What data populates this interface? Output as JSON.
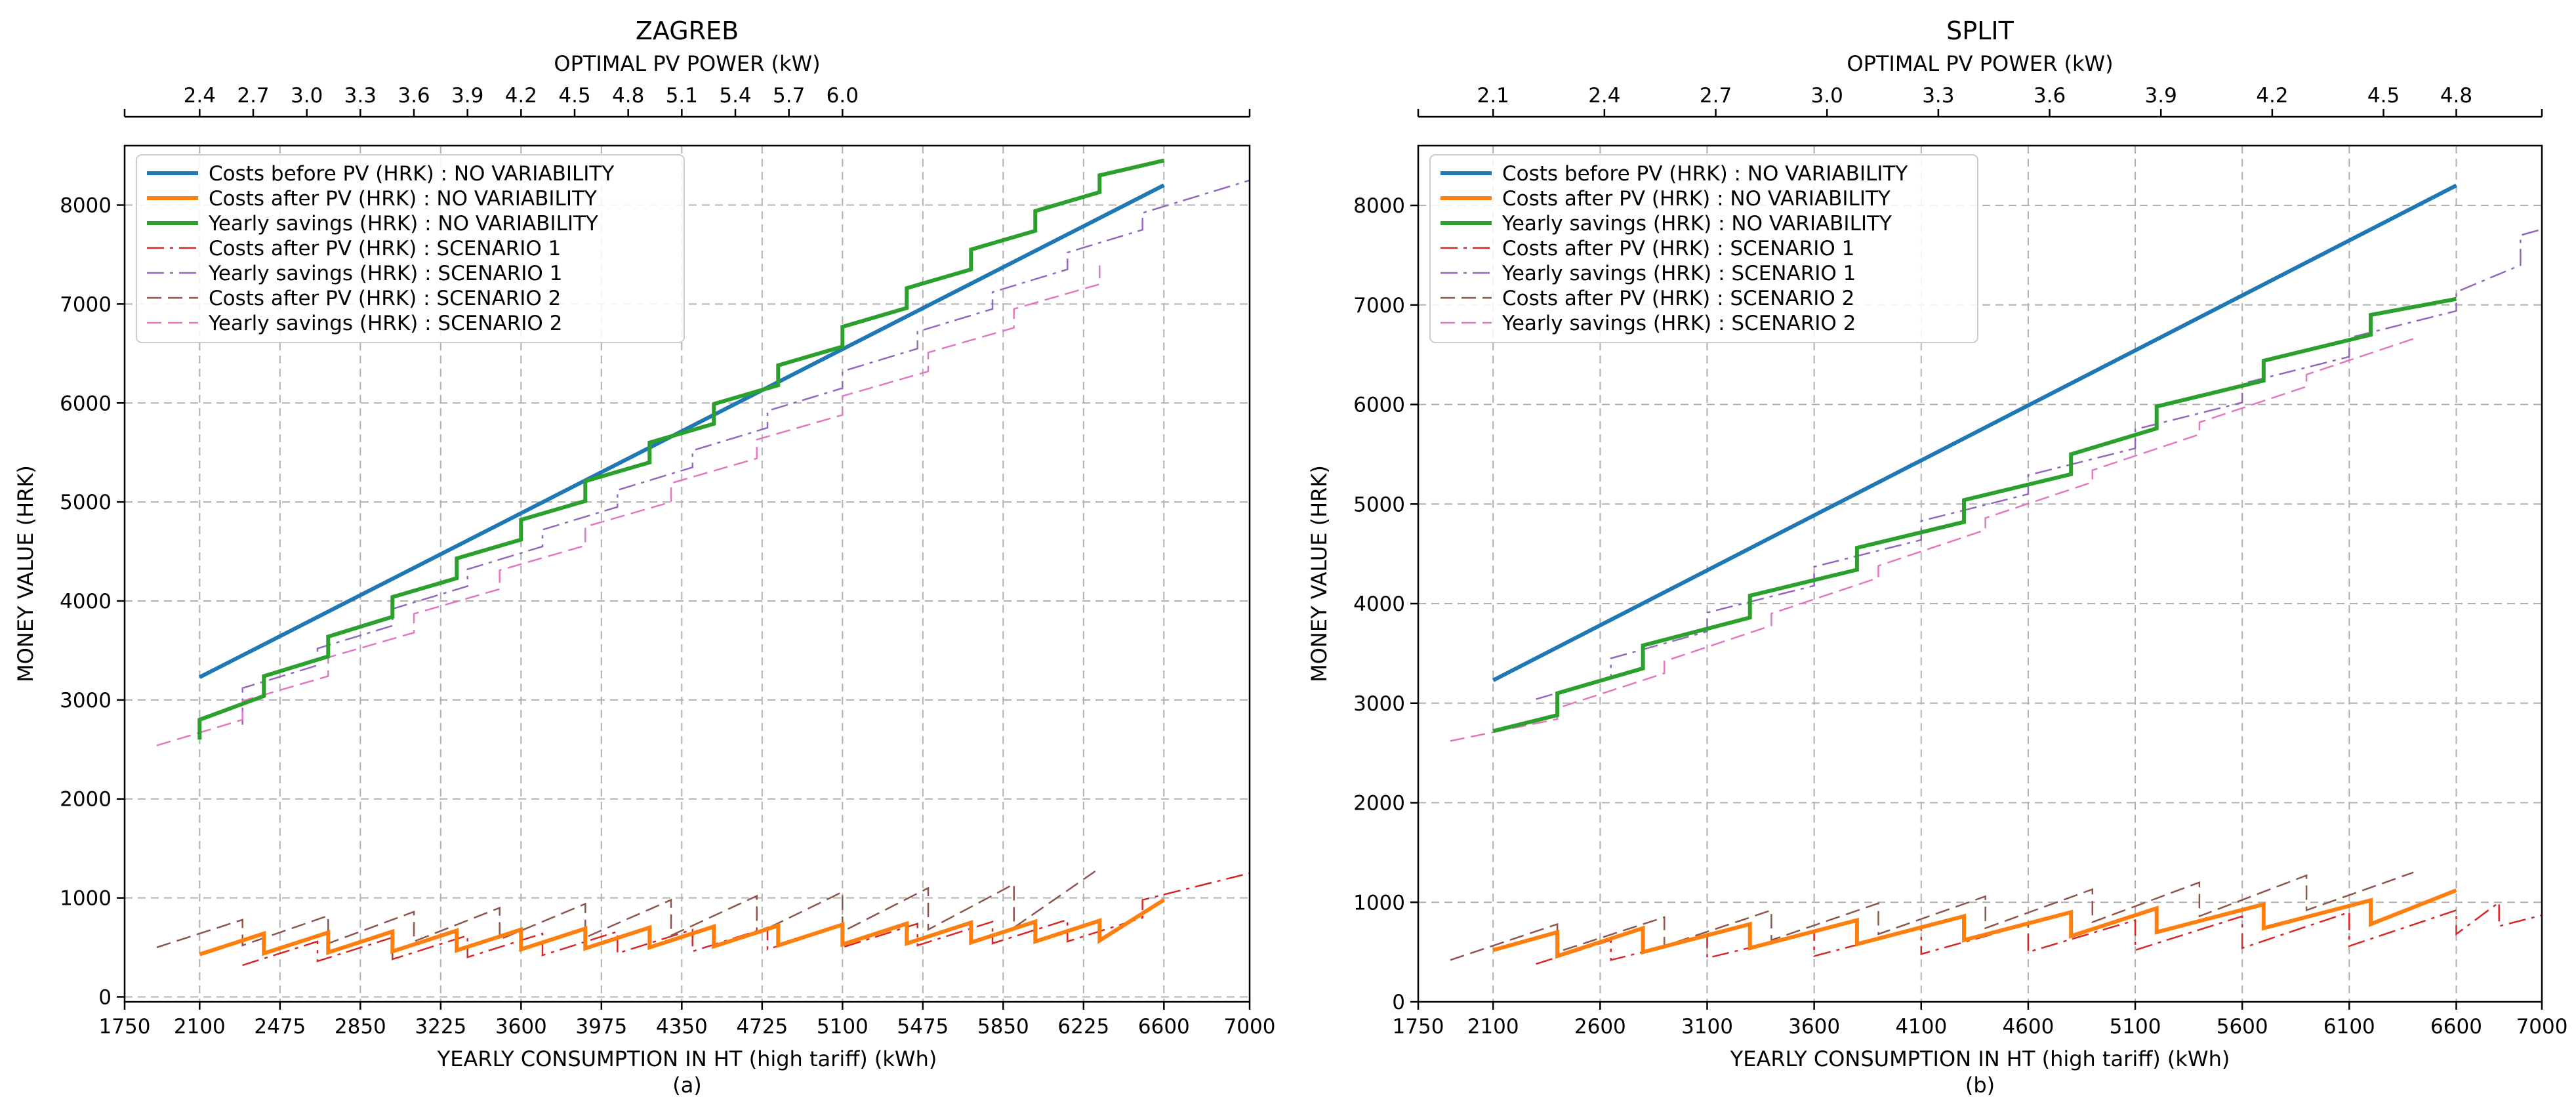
{
  "colors": {
    "costs_before_nv": "#1f77b4",
    "costs_after_nv": "#ff7f0e",
    "savings_nv": "#2ca02c",
    "costs_after_s1": "#d62728",
    "savings_s1": "#9467bd",
    "costs_after_s2": "#8c564b",
    "savings_s2": "#e377c2",
    "grid": "#b0b0b0"
  },
  "chart_data": [
    {
      "type": "line",
      "title": "ZAGREB",
      "top_xlabel": "OPTIMAL PV POWER (kW)",
      "top_ticks": [
        "2.4",
        "2.7",
        "3.0",
        "3.3",
        "3.6",
        "3.9",
        "4.2",
        "4.5",
        "4.8",
        "5.1",
        "5.4",
        "5.7",
        "6.0"
      ],
      "top_tick_positions": [
        2100,
        2350,
        2600,
        2850,
        3100,
        3350,
        3600,
        3850,
        4100,
        4350,
        4600,
        4850,
        5100
      ],
      "xlabel": "YEARLY CONSUMPTION IN HT (high tariff) (kWh)",
      "ylabel": "MONEY VALUE (HRK)",
      "panel_label": "(a)",
      "xlim": [
        1750,
        7000
      ],
      "ylim": [
        -50,
        8600
      ],
      "xticks": [
        1750,
        2100,
        2475,
        2850,
        3225,
        3600,
        3975,
        4350,
        4725,
        5100,
        5475,
        5850,
        6225,
        6600,
        7000
      ],
      "yticks": [
        0,
        1000,
        2000,
        3000,
        4000,
        5000,
        6000,
        7000,
        8000
      ],
      "legend_position": "upper-left",
      "series": [
        {
          "name": "Costs before PV (HRK) : NO VARIABILITY",
          "key": "costs_before_nv",
          "style": "solid",
          "width": 6,
          "x": [
            2100,
            6600
          ],
          "y": [
            3230,
            8200
          ]
        },
        {
          "name": "Costs after PV (HRK) : NO VARIABILITY",
          "key": "costs_after_nv",
          "style": "solid",
          "width": 6,
          "x": [
            2100,
            2400,
            2400,
            2700,
            2700,
            3000,
            3000,
            3300,
            3300,
            3600,
            3600,
            3900,
            3900,
            4200,
            4200,
            4500,
            4500,
            4800,
            4800,
            5100,
            5100,
            5400,
            5400,
            5700,
            5700,
            6000,
            6000,
            6300,
            6300,
            6600
          ],
          "y": [
            430,
            640,
            440,
            650,
            450,
            660,
            460,
            670,
            470,
            680,
            480,
            690,
            490,
            700,
            500,
            710,
            510,
            720,
            520,
            730,
            530,
            740,
            540,
            750,
            550,
            760,
            560,
            770,
            570,
            980
          ]
        },
        {
          "name": "Yearly savings (HRK) : NO VARIABILITY",
          "key": "savings_nv",
          "style": "solid",
          "width": 6,
          "x": [
            2100,
            2100,
            2400,
            2400,
            2700,
            2700,
            3000,
            3000,
            3300,
            3300,
            3600,
            3600,
            3900,
            3900,
            4200,
            4200,
            4500,
            4500,
            4800,
            4800,
            5100,
            5100,
            5400,
            5400,
            5700,
            5700,
            6000,
            6000,
            6300,
            6300,
            6600
          ],
          "y": [
            2600,
            2800,
            3040,
            3240,
            3440,
            3640,
            3840,
            4040,
            4230,
            4430,
            4620,
            4820,
            5010,
            5210,
            5400,
            5600,
            5790,
            5990,
            6180,
            6380,
            6570,
            6770,
            6960,
            7160,
            7350,
            7550,
            7740,
            7940,
            8130,
            8300,
            8450
          ]
        },
        {
          "name": "Costs after PV (HRK) : SCENARIO 1",
          "key": "costs_after_s1",
          "style": "dashdot",
          "width": 2.5,
          "x": [
            2300,
            2650,
            2650,
            3000,
            3000,
            3350,
            3350,
            3700,
            3700,
            4050,
            4050,
            4400,
            4400,
            4750,
            4750,
            5100,
            5100,
            5450,
            5450,
            5800,
            5800,
            6150,
            6150,
            6500,
            6500,
            7000
          ],
          "y": [
            320,
            560,
            360,
            600,
            380,
            620,
            400,
            640,
            420,
            660,
            440,
            680,
            460,
            700,
            480,
            720,
            500,
            740,
            520,
            760,
            540,
            780,
            560,
            800,
            980,
            1250
          ]
        },
        {
          "name": "Yearly savings (HRK) : SCENARIO 1",
          "key": "savings_s1",
          "style": "dashdot",
          "width": 2.5,
          "x": [
            2300,
            2300,
            2650,
            2650,
            3000,
            3000,
            3350,
            3350,
            3700,
            3700,
            4050,
            4050,
            4400,
            4400,
            4750,
            4750,
            5100,
            5100,
            5450,
            5450,
            5800,
            5800,
            6150,
            6150,
            6500,
            6500,
            7000
          ],
          "y": [
            2750,
            3120,
            3350,
            3520,
            3750,
            3920,
            4150,
            4320,
            4550,
            4720,
            4950,
            5120,
            5350,
            5520,
            5750,
            5920,
            6150,
            6320,
            6550,
            6720,
            6950,
            7120,
            7350,
            7520,
            7750,
            7920,
            8250
          ]
        },
        {
          "name": "Costs after PV (HRK) : SCENARIO 2",
          "key": "costs_after_s2",
          "style": "dashed",
          "width": 2.5,
          "x": [
            1900,
            2300,
            2300,
            2700,
            2700,
            3100,
            3100,
            3500,
            3500,
            3900,
            3900,
            4300,
            4300,
            4700,
            4700,
            5100,
            5100,
            5500,
            5500,
            5900,
            5900,
            6300
          ],
          "y": [
            500,
            780,
            520,
            820,
            540,
            860,
            560,
            900,
            580,
            940,
            600,
            980,
            620,
            1020,
            640,
            1060,
            660,
            1100,
            680,
            1140,
            700,
            1300
          ]
        },
        {
          "name": "Yearly savings (HRK) : SCENARIO 2",
          "key": "savings_s2",
          "style": "dashed",
          "width": 2.5,
          "x": [
            1900,
            2300,
            2300,
            2700,
            2700,
            3100,
            3100,
            3500,
            3500,
            3900,
            3900,
            4300,
            4300,
            4700,
            4700,
            5100,
            5100,
            5500,
            5500,
            5900,
            5900,
            6300,
            6300
          ],
          "y": [
            2540,
            2800,
            2990,
            3240,
            3430,
            3680,
            3870,
            4120,
            4310,
            4560,
            4750,
            5000,
            5190,
            5440,
            5630,
            5880,
            6070,
            6320,
            6510,
            6760,
            6950,
            7200,
            7390
          ]
        }
      ]
    },
    {
      "type": "line",
      "title": "SPLIT",
      "top_xlabel": "OPTIMAL PV POWER (kW)",
      "top_ticks": [
        "2.1",
        "2.4",
        "2.7",
        "3.0",
        "3.3",
        "3.6",
        "3.9",
        "4.2",
        "4.5",
        "4.8"
      ],
      "top_tick_positions": [
        2100,
        2620,
        3140,
        3660,
        4180,
        4700,
        5220,
        5740,
        6260,
        6600
      ],
      "xlabel": "YEARLY CONSUMPTION IN HT (high tariff) (kWh)",
      "ylabel": "MONEY VALUE (HRK)",
      "panel_label": "(b)",
      "xlim": [
        1750,
        7000
      ],
      "ylim": [
        0,
        8600
      ],
      "xticks": [
        1750,
        2100,
        2600,
        3100,
        3600,
        4100,
        4600,
        5100,
        5600,
        6100,
        6600,
        7000
      ],
      "yticks": [
        0,
        1000,
        2000,
        3000,
        4000,
        5000,
        6000,
        7000,
        8000
      ],
      "legend_position": "upper-left",
      "series": [
        {
          "name": "Costs before PV (HRK) : NO VARIABILITY",
          "key": "costs_before_nv",
          "style": "solid",
          "width": 6,
          "x": [
            2100,
            6600
          ],
          "y": [
            3230,
            8200
          ]
        },
        {
          "name": "Costs after PV (HRK) : NO VARIABILITY",
          "key": "costs_after_nv",
          "style": "solid",
          "width": 6,
          "x": [
            2100,
            2400,
            2400,
            2800,
            2800,
            3300,
            3300,
            3800,
            3800,
            4300,
            4300,
            4800,
            4800,
            5200,
            5200,
            5700,
            5700,
            6200,
            6200,
            6600
          ],
          "y": [
            520,
            700,
            460,
            740,
            500,
            780,
            540,
            820,
            580,
            860,
            620,
            900,
            660,
            940,
            700,
            980,
            740,
            1020,
            780,
            1120
          ]
        },
        {
          "name": "Yearly savings (HRK) : NO VARIABILITY",
          "key": "savings_nv",
          "style": "solid",
          "width": 6,
          "x": [
            2100,
            2400,
            2400,
            2800,
            2800,
            3300,
            3300,
            3800,
            3800,
            4300,
            4300,
            4800,
            4800,
            5200,
            5200,
            5700,
            5700,
            6200,
            6200,
            6600
          ],
          "y": [
            2720,
            2880,
            3100,
            3350,
            3580,
            3860,
            4080,
            4340,
            4560,
            4820,
            5040,
            5300,
            5500,
            5760,
            5980,
            6240,
            6440,
            6700,
            6900,
            7060
          ]
        },
        {
          "name": "Costs after PV (HRK) : SCENARIO 1",
          "key": "costs_after_s1",
          "style": "dashdot",
          "width": 2.5,
          "x": [
            2300,
            2650,
            2650,
            3100,
            3100,
            3600,
            3600,
            4100,
            4100,
            4600,
            4600,
            5100,
            5100,
            5600,
            5600,
            6100,
            6100,
            6600,
            6600,
            6800,
            6800,
            7000
          ],
          "y": [
            380,
            620,
            420,
            660,
            440,
            700,
            460,
            740,
            480,
            780,
            500,
            820,
            520,
            860,
            540,
            900,
            560,
            920,
            680,
            1000,
            760,
            870
          ]
        },
        {
          "name": "Yearly savings (HRK) : SCENARIO 1",
          "key": "savings_s1",
          "style": "dashdot",
          "width": 2.5,
          "x": [
            2300,
            2650,
            2650,
            3100,
            3100,
            3600,
            3600,
            4100,
            4100,
            4600,
            4600,
            5100,
            5100,
            5600,
            5600,
            6100,
            6100,
            6600,
            6600,
            6900,
            6900,
            7000
          ],
          "y": [
            3040,
            3260,
            3450,
            3720,
            3910,
            4180,
            4370,
            4640,
            4830,
            5100,
            5290,
            5560,
            5750,
            6020,
            6210,
            6480,
            6670,
            6940,
            7130,
            7400,
            7700,
            7760
          ]
        },
        {
          "name": "Costs after PV (HRK) : SCENARIO 2",
          "key": "costs_after_s2",
          "style": "dashed",
          "width": 2.5,
          "x": [
            1900,
            2400,
            2400,
            2900,
            2900,
            3400,
            3400,
            3900,
            3900,
            4400,
            4400,
            4900,
            4900,
            5400,
            5400,
            5900,
            5900,
            6400
          ],
          "y": [
            420,
            780,
            500,
            850,
            560,
            920,
            620,
            990,
            680,
            1060,
            740,
            1130,
            800,
            1200,
            860,
            1270,
            920,
            1300
          ]
        },
        {
          "name": "Yearly savings (HRK) : SCENARIO 2",
          "key": "savings_s2",
          "style": "dashed",
          "width": 2.5,
          "x": [
            1900,
            2400,
            2400,
            2900,
            2900,
            3400,
            3400,
            3900,
            3900,
            4400,
            4400,
            4900,
            4900,
            5400,
            5400,
            5900,
            5900,
            6400
          ],
          "y": [
            2620,
            2840,
            2950,
            3300,
            3420,
            3780,
            3900,
            4260,
            4380,
            4740,
            4860,
            5220,
            5340,
            5700,
            5820,
            6180,
            6300,
            6660
          ]
        }
      ]
    }
  ]
}
